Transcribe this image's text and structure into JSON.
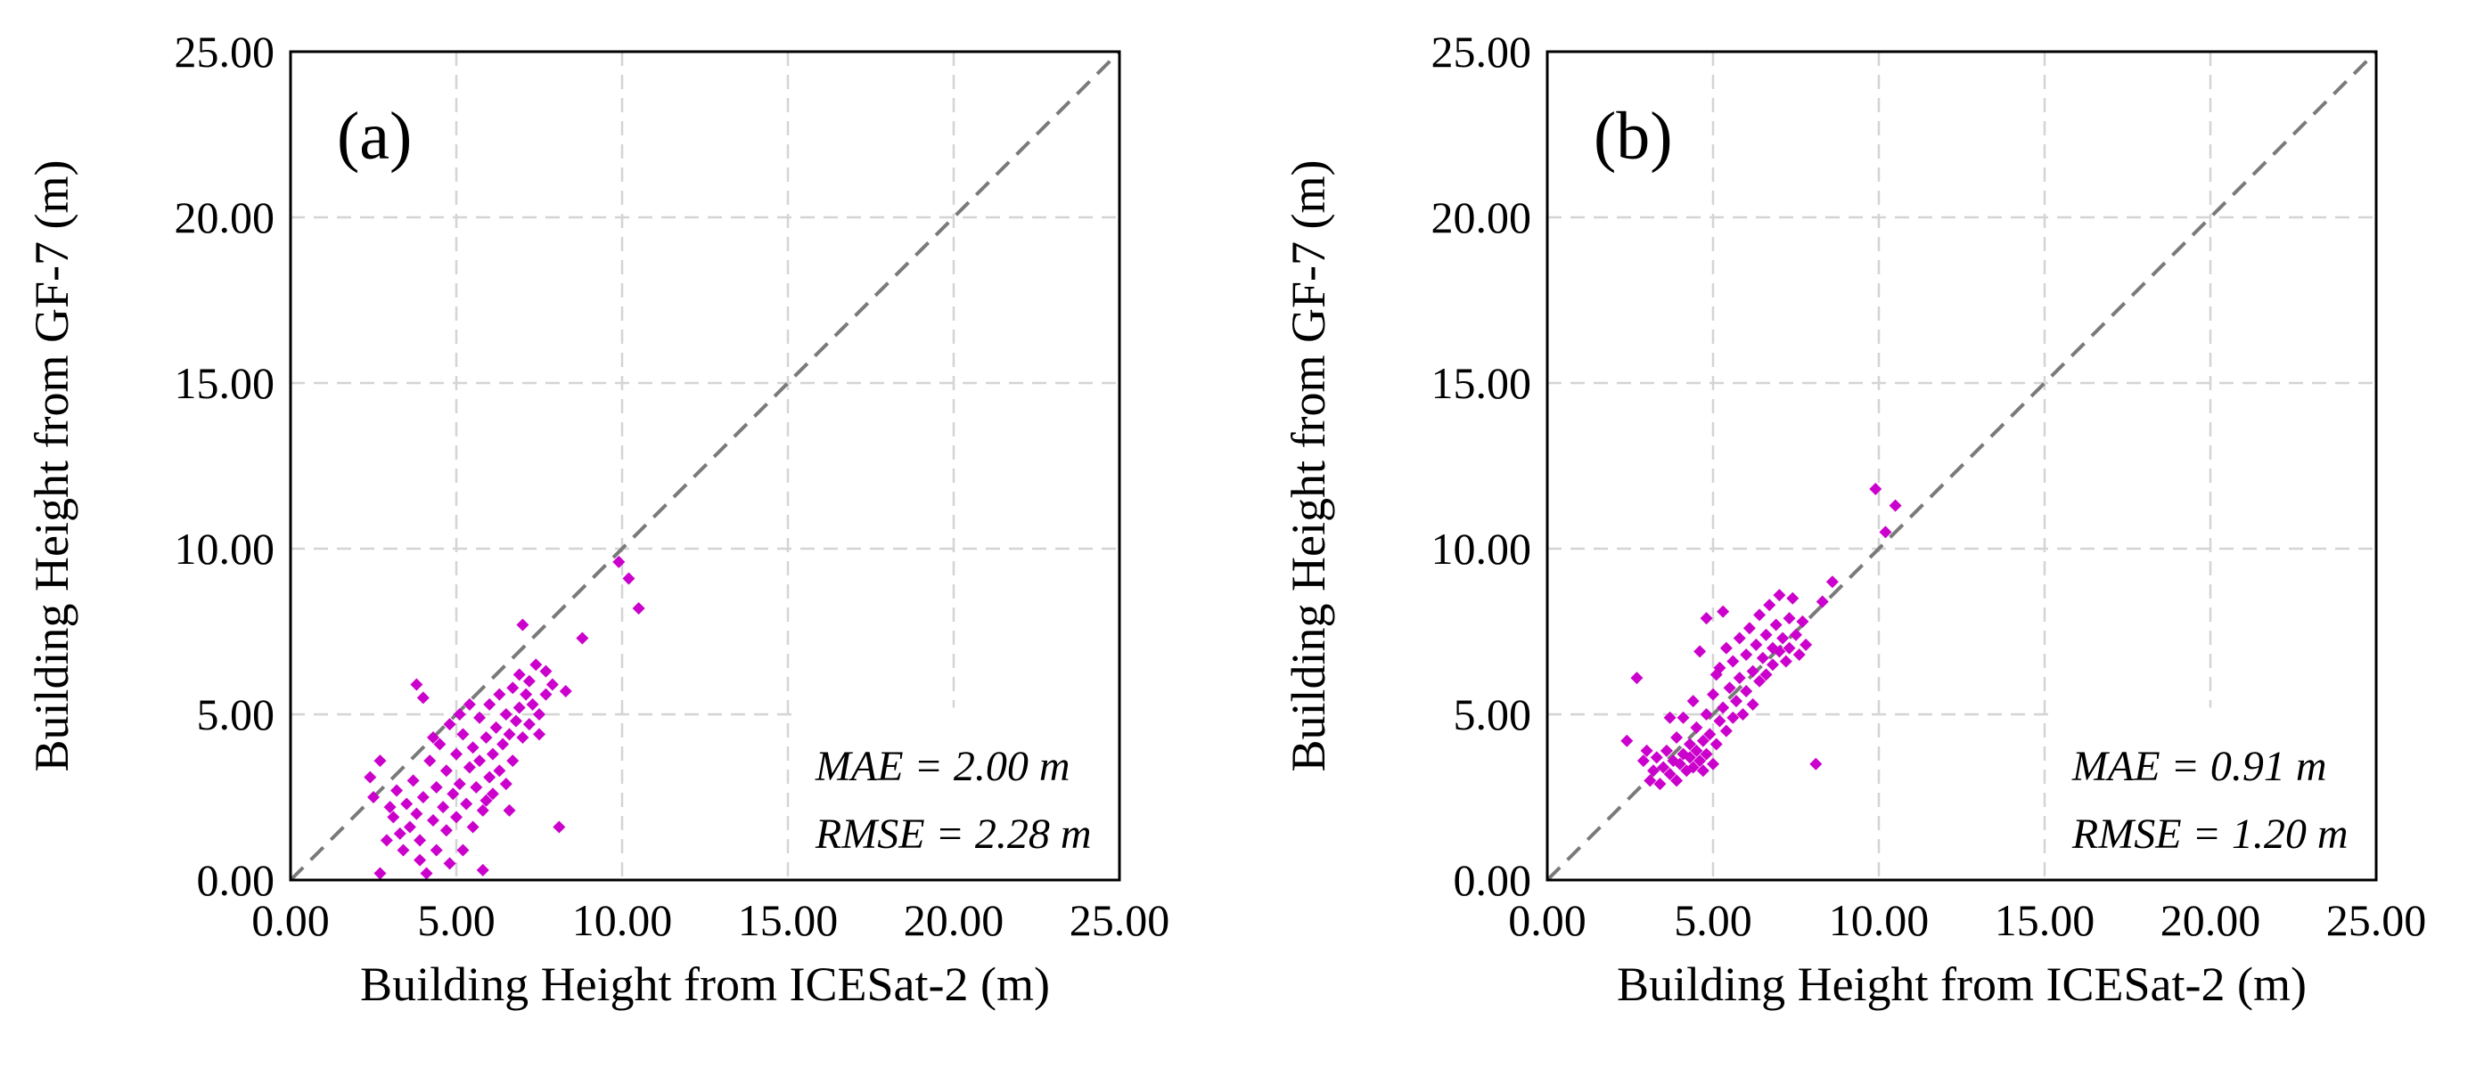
{
  "figure": {
    "description_labels": [
      "(a)",
      "(b)"
    ]
  },
  "chart_data": [
    {
      "type": "scatter",
      "panel_label": "(a)",
      "xlabel": "Building Height from ICESat-2 (m)",
      "ylabel": "Building Height from GF-7 (m)",
      "xlim": [
        0,
        25
      ],
      "ylim": [
        0,
        25
      ],
      "xticks": [
        "0.00",
        "5.00",
        "10.00",
        "15.00",
        "20.00",
        "25.00"
      ],
      "yticks": [
        "0.00",
        "5.00",
        "10.00",
        "15.00",
        "20.00",
        "25.00"
      ],
      "grid": true,
      "reference_line": "1:1",
      "marker_color": "#cc00cc",
      "stats": [
        "MAE = 2.00 m",
        "RMSE = 2.28 m"
      ],
      "points": [
        [
          2.4,
          3.1
        ],
        [
          2.5,
          2.5
        ],
        [
          2.7,
          3.6
        ],
        [
          2.9,
          1.2
        ],
        [
          2.7,
          0.2
        ],
        [
          3.0,
          2.2
        ],
        [
          3.1,
          1.9
        ],
        [
          3.3,
          1.4
        ],
        [
          3.2,
          2.7
        ],
        [
          3.4,
          0.9
        ],
        [
          3.5,
          2.3
        ],
        [
          3.6,
          1.6
        ],
        [
          3.7,
          3.0
        ],
        [
          3.8,
          2.0
        ],
        [
          3.9,
          0.6
        ],
        [
          3.9,
          1.2
        ],
        [
          3.8,
          5.9
        ],
        [
          4.0,
          5.5
        ],
        [
          4.0,
          2.5
        ],
        [
          4.1,
          0.2
        ],
        [
          4.2,
          3.6
        ],
        [
          4.3,
          1.8
        ],
        [
          4.4,
          2.8
        ],
        [
          4.4,
          0.9
        ],
        [
          4.5,
          4.1
        ],
        [
          4.6,
          2.2
        ],
        [
          4.7,
          1.5
        ],
        [
          4.7,
          3.3
        ],
        [
          4.8,
          0.5
        ],
        [
          4.8,
          4.7
        ],
        [
          4.9,
          2.6
        ],
        [
          5.0,
          1.9
        ],
        [
          5.0,
          3.8
        ],
        [
          5.1,
          2.9
        ],
        [
          5.2,
          0.9
        ],
        [
          5.2,
          4.4
        ],
        [
          5.3,
          2.3
        ],
        [
          5.4,
          3.4
        ],
        [
          5.4,
          5.3
        ],
        [
          5.5,
          1.6
        ],
        [
          5.5,
          4.0
        ],
        [
          5.6,
          2.8
        ],
        [
          5.7,
          3.6
        ],
        [
          5.7,
          4.9
        ],
        [
          5.8,
          0.3
        ],
        [
          5.8,
          2.1
        ],
        [
          5.9,
          4.3
        ],
        [
          6.0,
          3.1
        ],
        [
          6.0,
          5.3
        ],
        [
          6.1,
          3.8
        ],
        [
          6.1,
          2.6
        ],
        [
          6.2,
          4.6
        ],
        [
          6.3,
          3.3
        ],
        [
          6.3,
          5.6
        ],
        [
          6.4,
          4.1
        ],
        [
          6.5,
          2.9
        ],
        [
          6.5,
          5.0
        ],
        [
          6.6,
          4.4
        ],
        [
          6.7,
          5.8
        ],
        [
          6.7,
          3.6
        ],
        [
          6.8,
          4.8
        ],
        [
          6.9,
          6.2
        ],
        [
          6.9,
          5.2
        ],
        [
          7.0,
          4.3
        ],
        [
          7.0,
          7.7
        ],
        [
          7.1,
          5.6
        ],
        [
          7.2,
          6.0
        ],
        [
          7.2,
          4.7
        ],
        [
          7.3,
          5.3
        ],
        [
          7.4,
          6.5
        ],
        [
          7.5,
          5.0
        ],
        [
          7.5,
          4.4
        ],
        [
          7.7,
          6.3
        ],
        [
          7.7,
          5.6
        ],
        [
          7.9,
          5.9
        ],
        [
          8.1,
          1.6
        ],
        [
          8.3,
          5.7
        ],
        [
          8.8,
          7.3
        ],
        [
          9.9,
          9.6
        ],
        [
          10.2,
          9.1
        ],
        [
          10.5,
          8.2
        ],
        [
          4.3,
          4.3
        ],
        [
          5.1,
          5.0
        ],
        [
          5.9,
          2.4
        ],
        [
          6.6,
          2.1
        ]
      ]
    },
    {
      "type": "scatter",
      "panel_label": "(b)",
      "xlabel": "Building Height from ICESat-2 (m)",
      "ylabel": "Building Height from GF-7 (m)",
      "xlim": [
        0,
        25
      ],
      "ylim": [
        0,
        25
      ],
      "xticks": [
        "0.00",
        "5.00",
        "10.00",
        "15.00",
        "20.00",
        "25.00"
      ],
      "yticks": [
        "0.00",
        "5.00",
        "10.00",
        "15.00",
        "20.00",
        "25.00"
      ],
      "grid": true,
      "reference_line": "1:1",
      "marker_color": "#cc00cc",
      "stats": [
        "MAE = 0.91 m",
        "RMSE = 1.20 m"
      ],
      "points": [
        [
          2.4,
          4.2
        ],
        [
          2.7,
          6.1
        ],
        [
          2.9,
          3.6
        ],
        [
          3.0,
          3.9
        ],
        [
          3.1,
          3.0
        ],
        [
          3.2,
          3.3
        ],
        [
          3.3,
          3.7
        ],
        [
          3.4,
          2.9
        ],
        [
          3.5,
          3.4
        ],
        [
          3.6,
          3.9
        ],
        [
          3.7,
          3.2
        ],
        [
          3.8,
          3.6
        ],
        [
          3.9,
          3.0
        ],
        [
          3.9,
          4.3
        ],
        [
          4.0,
          3.5
        ],
        [
          4.1,
          3.8
        ],
        [
          4.1,
          4.9
        ],
        [
          4.2,
          3.3
        ],
        [
          4.3,
          3.7
        ],
        [
          4.3,
          4.1
        ],
        [
          4.4,
          3.4
        ],
        [
          4.5,
          3.9
        ],
        [
          4.5,
          4.6
        ],
        [
          4.6,
          3.6
        ],
        [
          4.7,
          4.2
        ],
        [
          4.7,
          3.3
        ],
        [
          4.8,
          5.0
        ],
        [
          4.8,
          3.8
        ],
        [
          4.9,
          4.4
        ],
        [
          5.0,
          3.5
        ],
        [
          5.0,
          5.6
        ],
        [
          5.1,
          4.1
        ],
        [
          5.2,
          4.8
        ],
        [
          5.2,
          6.4
        ],
        [
          5.3,
          5.2
        ],
        [
          5.4,
          4.5
        ],
        [
          5.4,
          7.0
        ],
        [
          5.5,
          5.8
        ],
        [
          5.6,
          4.9
        ],
        [
          5.6,
          6.6
        ],
        [
          5.7,
          5.4
        ],
        [
          5.8,
          7.3
        ],
        [
          5.8,
          6.1
        ],
        [
          5.9,
          5.0
        ],
        [
          6.0,
          6.8
        ],
        [
          6.0,
          5.7
        ],
        [
          6.1,
          7.6
        ],
        [
          6.2,
          6.3
        ],
        [
          6.2,
          5.3
        ],
        [
          6.3,
          7.1
        ],
        [
          6.4,
          6.0
        ],
        [
          6.4,
          8.0
        ],
        [
          6.5,
          6.7
        ],
        [
          6.6,
          7.4
        ],
        [
          6.6,
          6.2
        ],
        [
          6.7,
          8.3
        ],
        [
          6.8,
          7.0
        ],
        [
          6.8,
          6.5
        ],
        [
          6.9,
          7.7
        ],
        [
          7.0,
          6.9
        ],
        [
          7.0,
          8.6
        ],
        [
          7.1,
          7.3
        ],
        [
          7.2,
          6.6
        ],
        [
          7.3,
          7.9
        ],
        [
          7.3,
          7.0
        ],
        [
          7.4,
          8.5
        ],
        [
          7.5,
          7.4
        ],
        [
          7.6,
          6.8
        ],
        [
          7.7,
          7.8
        ],
        [
          7.8,
          7.1
        ],
        [
          8.1,
          3.5
        ],
        [
          8.3,
          8.4
        ],
        [
          8.6,
          9.0
        ],
        [
          9.9,
          11.8
        ],
        [
          10.2,
          10.5
        ],
        [
          10.5,
          11.3
        ],
        [
          4.8,
          7.9
        ],
        [
          5.3,
          8.1
        ],
        [
          4.6,
          6.9
        ],
        [
          5.1,
          6.2
        ],
        [
          4.4,
          5.4
        ],
        [
          3.7,
          4.9
        ]
      ]
    }
  ]
}
